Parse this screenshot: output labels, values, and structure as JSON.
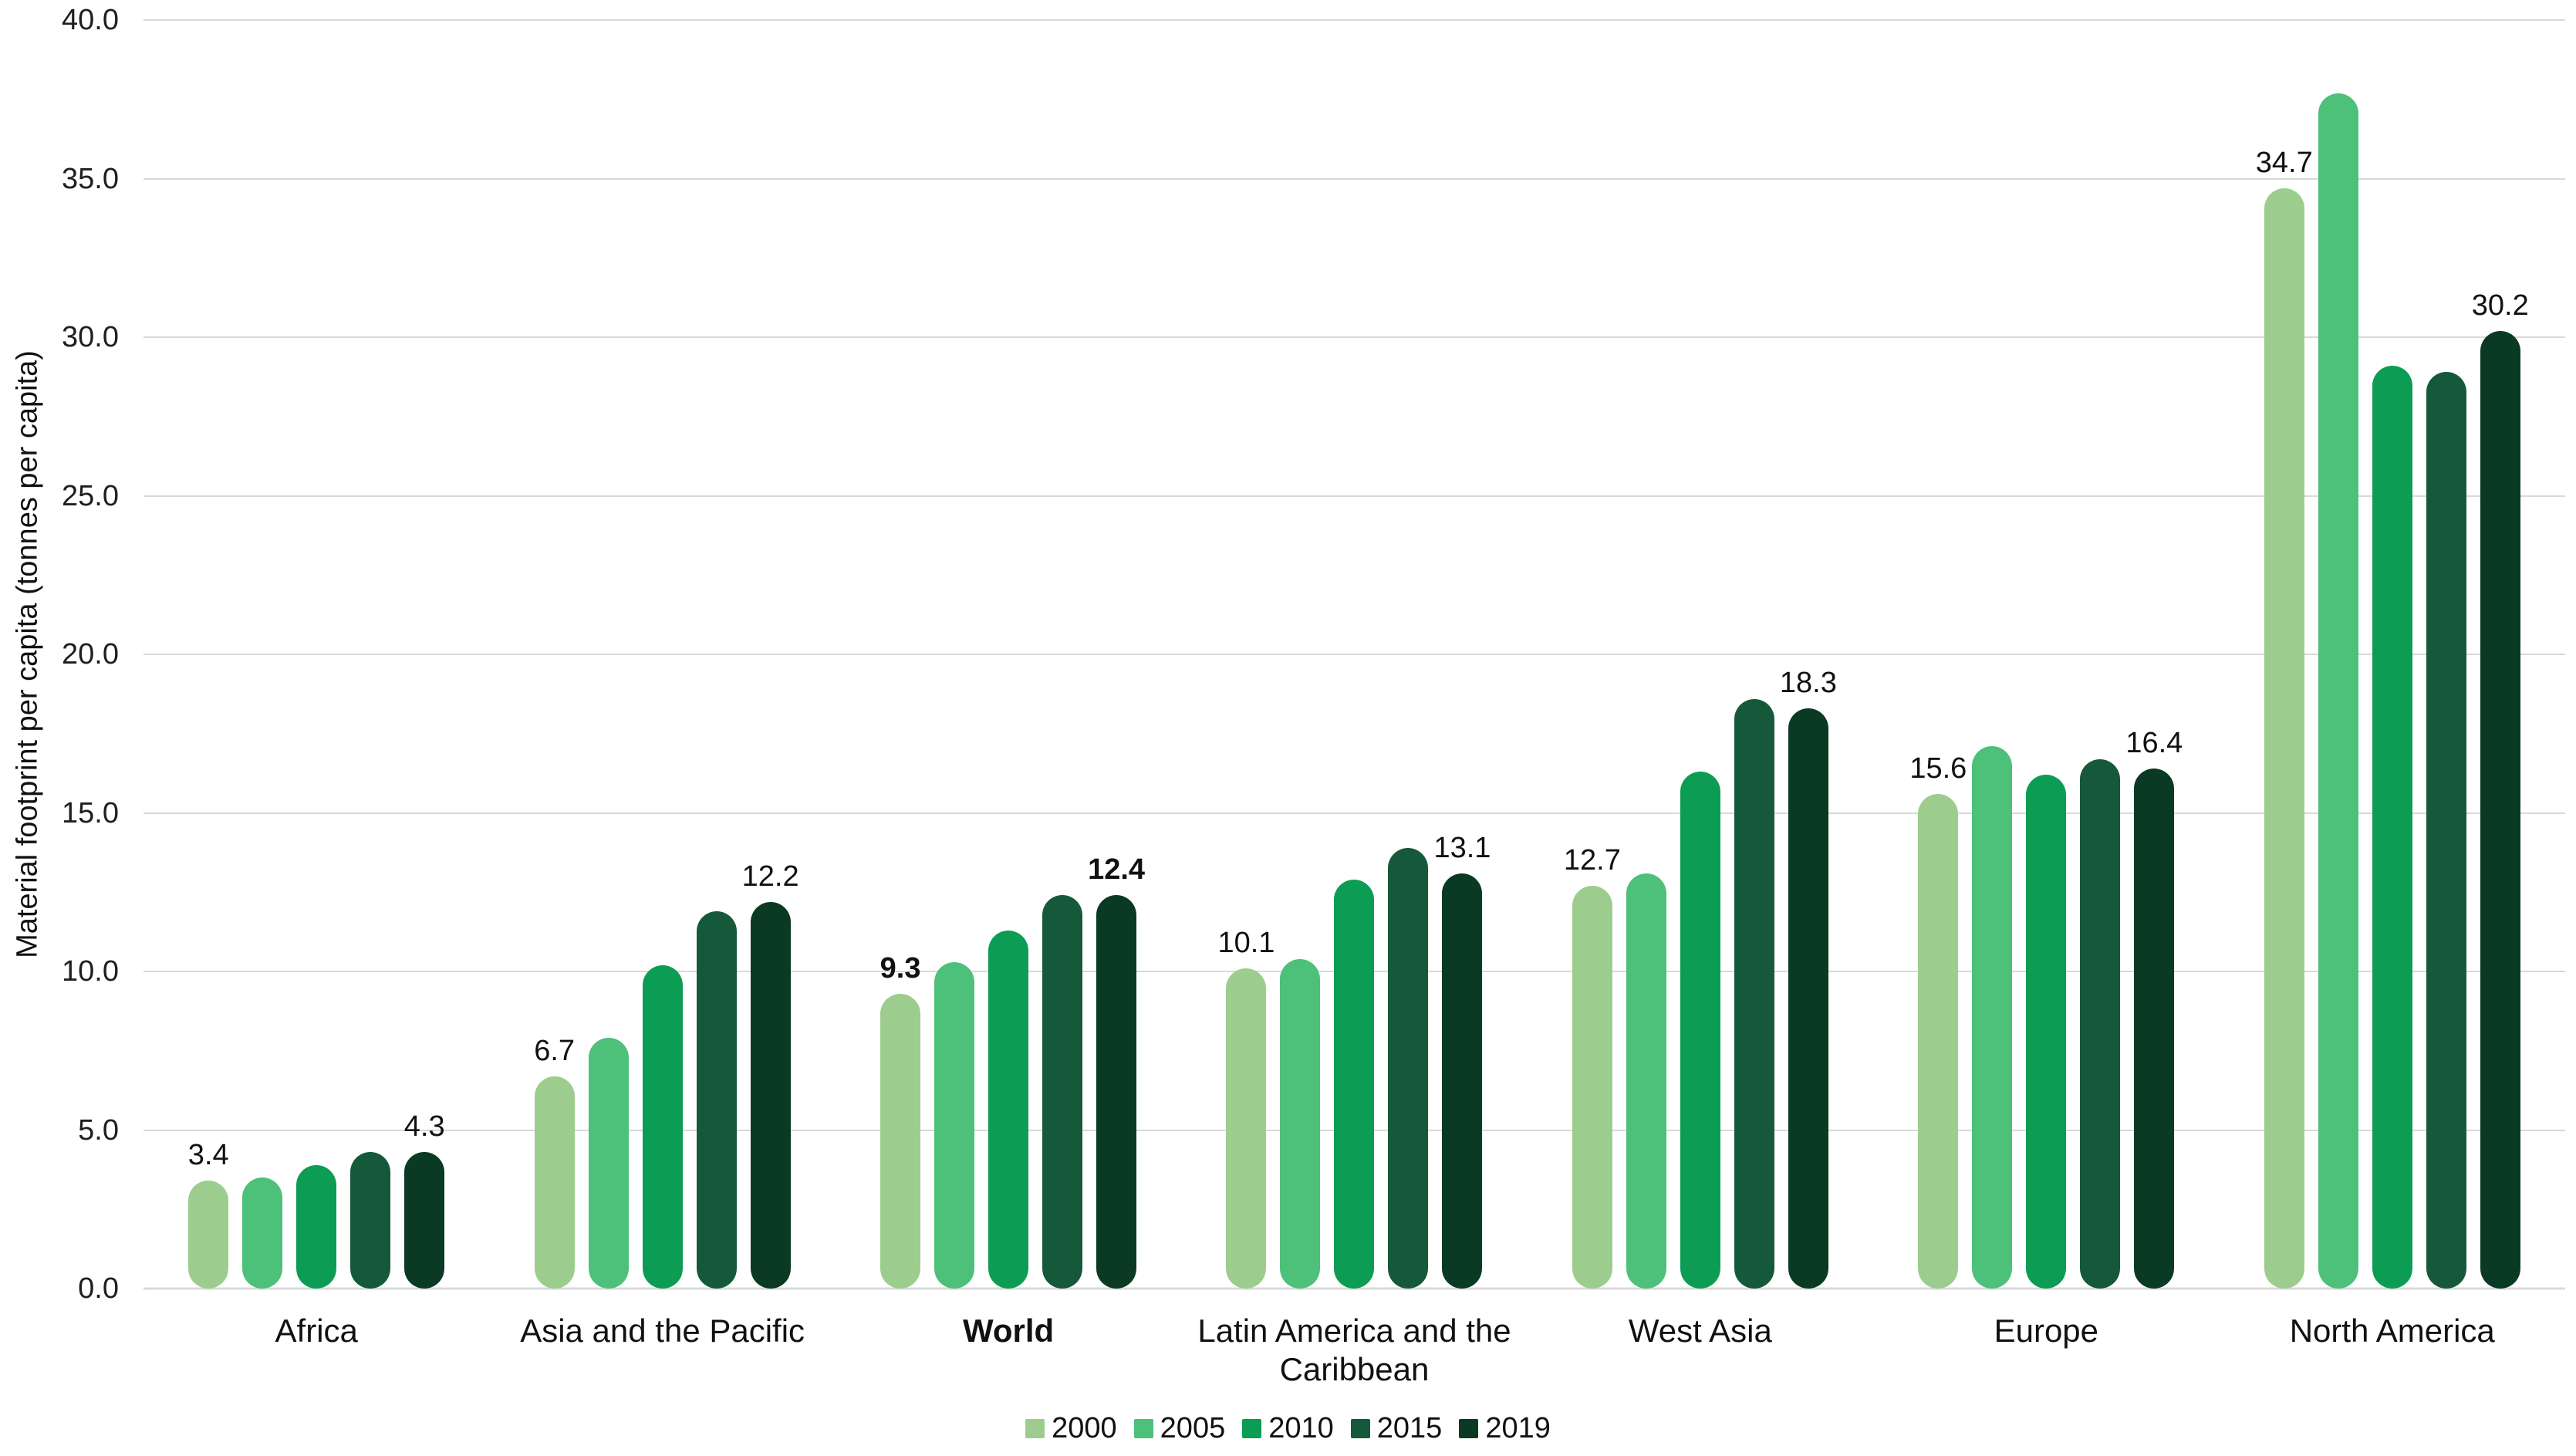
{
  "chart_data": {
    "type": "bar",
    "title": "",
    "xlabel": "",
    "ylabel": "Material footprint per capita (tonnes per capita)",
    "ylim": [
      0,
      40
    ],
    "y_tick_step": 5,
    "y_tick_labels": [
      "0.0",
      "5.0",
      "10.0",
      "15.0",
      "20.0",
      "25.0",
      "30.0",
      "35.0",
      "40.0"
    ],
    "grid": "horizontal",
    "legend_position": "bottom",
    "categories": [
      "Africa",
      "Asia and the Pacific",
      "World",
      "Latin America and the Caribbean",
      "West Asia",
      "Europe",
      "North America"
    ],
    "bold_category": "World",
    "series": [
      {
        "name": "2000",
        "color": "#9CCD8E",
        "values": [
          3.4,
          6.7,
          9.3,
          10.1,
          12.7,
          15.6,
          34.7
        ]
      },
      {
        "name": "2005",
        "color": "#4DC07A",
        "values": [
          3.5,
          7.9,
          10.3,
          10.4,
          13.1,
          17.1,
          37.7
        ]
      },
      {
        "name": "2010",
        "color": "#0D9C53",
        "values": [
          3.9,
          10.2,
          11.3,
          12.9,
          16.3,
          16.2,
          29.1
        ]
      },
      {
        "name": "2015",
        "color": "#16593A",
        "values": [
          4.3,
          11.9,
          12.4,
          13.9,
          18.6,
          16.7,
          28.9
        ]
      },
      {
        "name": "2019",
        "color": "#0A3A23",
        "values": [
          4.3,
          12.2,
          12.4,
          13.1,
          18.3,
          16.4,
          30.2
        ]
      }
    ],
    "value_labels": [
      {
        "category": "Africa",
        "series": "2000",
        "text": "3.4",
        "bold": false
      },
      {
        "category": "Africa",
        "series": "2019",
        "text": "4.3",
        "bold": false
      },
      {
        "category": "Asia and the Pacific",
        "series": "2000",
        "text": "6.7",
        "bold": false
      },
      {
        "category": "Asia and the Pacific",
        "series": "2019",
        "text": "12.2",
        "bold": false
      },
      {
        "category": "World",
        "series": "2000",
        "text": "9.3",
        "bold": true
      },
      {
        "category": "World",
        "series": "2019",
        "text": "12.4",
        "bold": true
      },
      {
        "category": "Latin America and the Caribbean",
        "series": "2000",
        "text": "10.1",
        "bold": false
      },
      {
        "category": "Latin America and the Caribbean",
        "series": "2019",
        "text": "13.1",
        "bold": false
      },
      {
        "category": "West Asia",
        "series": "2000",
        "text": "12.7",
        "bold": false
      },
      {
        "category": "West Asia",
        "series": "2019",
        "text": "18.3",
        "bold": false
      },
      {
        "category": "Europe",
        "series": "2000",
        "text": "15.6",
        "bold": false
      },
      {
        "category": "Europe",
        "series": "2019",
        "text": "16.4",
        "bold": false
      },
      {
        "category": "North America",
        "series": "2000",
        "text": "34.7",
        "bold": false
      },
      {
        "category": "North America",
        "series": "2019",
        "text": "30.2",
        "bold": false
      }
    ],
    "colors": {
      "gridline": "#D9D9D9",
      "axis_line": "#D9D9D9",
      "text": "#1F1F1F"
    }
  }
}
